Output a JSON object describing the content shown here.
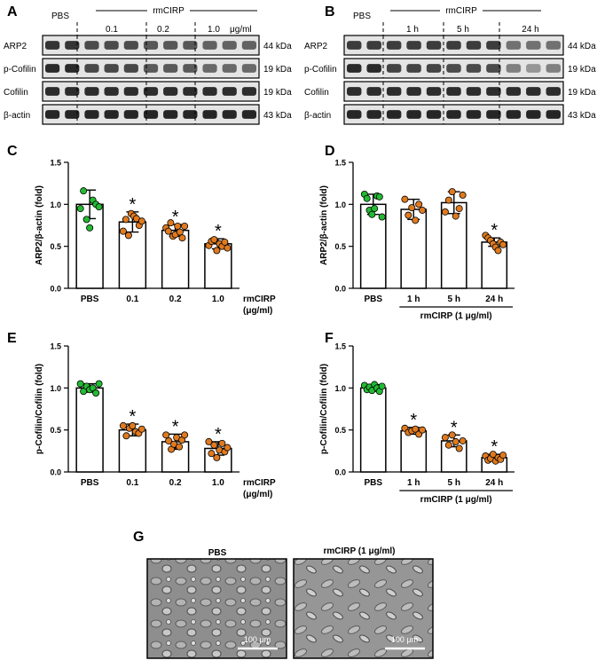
{
  "panels": {
    "A": {
      "letter": "A",
      "treatment": "rmCIRP",
      "unit": "μg/ml",
      "groups": [
        "PBS",
        "0.1",
        "0.2",
        "1.0"
      ],
      "proteins": [
        {
          "name": "ARP2",
          "kda": "44 kDa"
        },
        {
          "name": "p-Cofilin",
          "kda": "19 kDa"
        },
        {
          "name": "Cofilin",
          "kda": "19 kDa"
        },
        {
          "name": "β-actin",
          "kda": "43 kDa"
        }
      ]
    },
    "B": {
      "letter": "B",
      "treatment": "rmCIRP",
      "groups": [
        "PBS",
        "1 h",
        "5 h",
        "24 h"
      ],
      "proteins": [
        {
          "name": "ARP2",
          "kda": "44 kDa"
        },
        {
          "name": "p-Cofilin",
          "kda": "19 kDa"
        },
        {
          "name": "Cofilin",
          "kda": "19 kDa"
        },
        {
          "name": "β-actin",
          "kda": "43 kDa"
        }
      ]
    },
    "G": {
      "letter": "G",
      "left_title": "PBS",
      "right_title": "rmCIRP (1 μg/ml)",
      "scale_bar": "100 μm"
    }
  },
  "chart_data": [
    {
      "panel": "C",
      "type": "bar",
      "ylabel": "ARP2/β-actin (fold)",
      "ylim": [
        0,
        1.5
      ],
      "yticks": [
        "0.0",
        "0.5",
        "1.0",
        "1.5"
      ],
      "categories": [
        "PBS",
        "0.1",
        "0.2",
        "1.0"
      ],
      "values": [
        1.0,
        0.79,
        0.69,
        0.53
      ],
      "errors": [
        0.17,
        0.12,
        0.07,
        0.06
      ],
      "significant": [
        false,
        true,
        true,
        true
      ],
      "marker": "*",
      "xlabel": "rmCIRP",
      "xlabel_unit": "(μg/ml)",
      "points": [
        [
          0.95,
          1.16,
          0.82,
          0.72,
          1.05,
          1.0,
          0.97
        ],
        [
          0.68,
          0.82,
          0.63,
          0.89,
          0.86,
          0.83,
          0.75,
          0.8
        ],
        [
          0.72,
          0.68,
          0.78,
          0.62,
          0.64,
          0.74,
          0.67,
          0.6,
          0.74
        ],
        [
          0.51,
          0.56,
          0.58,
          0.45,
          0.53,
          0.5,
          0.55,
          0.48
        ]
      ],
      "point_colors": [
        "#22bb33",
        "#e07a1f",
        "#e07a1f",
        "#e07a1f"
      ]
    },
    {
      "panel": "D",
      "type": "bar",
      "ylabel": "ARP2/β-actin (fold)",
      "ylim": [
        0,
        1.5
      ],
      "yticks": [
        "0.0",
        "0.5",
        "1.0",
        "1.5"
      ],
      "categories": [
        "PBS",
        "1 h",
        "5 h",
        "24 h"
      ],
      "values": [
        1.0,
        0.94,
        1.02,
        0.55
      ],
      "errors": [
        0.12,
        0.12,
        0.13,
        0.05
      ],
      "significant": [
        false,
        false,
        false,
        true
      ],
      "marker": "*",
      "bracket_label": "rmCIRP (1 μg/ml)",
      "points": [
        [
          1.12,
          1.07,
          0.93,
          0.88,
          0.95,
          1.1,
          1.09,
          0.85
        ],
        [
          1.06,
          0.87,
          0.96,
          0.81,
          1.0,
          0.93
        ],
        [
          0.91,
          1.05,
          1.15,
          0.86,
          0.95,
          1.11
        ],
        [
          0.63,
          0.6,
          0.57,
          0.53,
          0.49,
          0.45,
          0.55,
          0.52
        ]
      ],
      "point_colors": [
        "#22bb33",
        "#e07a1f",
        "#e07a1f",
        "#e07a1f"
      ]
    },
    {
      "panel": "E",
      "type": "bar",
      "ylabel": "p-Cofilin/Cofilin (fold)",
      "ylim": [
        0,
        1.5
      ],
      "yticks": [
        "0.0",
        "0.5",
        "1.0",
        "1.5"
      ],
      "categories": [
        "PBS",
        "0.1",
        "0.2",
        "1.0"
      ],
      "values": [
        1.0,
        0.5,
        0.36,
        0.28
      ],
      "errors": [
        0.05,
        0.07,
        0.09,
        0.08
      ],
      "significant": [
        false,
        true,
        true,
        true
      ],
      "marker": "*",
      "xlabel": "rmCIRP",
      "xlabel_unit": "(μg/ml)",
      "points": [
        [
          1.05,
          0.96,
          1.02,
          0.98,
          1.0,
          0.94,
          1.05
        ],
        [
          0.55,
          0.43,
          0.52,
          0.55,
          0.48,
          0.46,
          0.51
        ],
        [
          0.44,
          0.37,
          0.27,
          0.33,
          0.41,
          0.3,
          0.38,
          0.44
        ],
        [
          0.36,
          0.22,
          0.32,
          0.17,
          0.26,
          0.34,
          0.24,
          0.29
        ]
      ],
      "point_colors": [
        "#22bb33",
        "#e07a1f",
        "#e07a1f",
        "#e07a1f"
      ]
    },
    {
      "panel": "F",
      "type": "bar",
      "ylabel": "p-Cofilin/Cofilin (fold)",
      "ylim": [
        0,
        1.5
      ],
      "yticks": [
        "0.0",
        "0.5",
        "1.0",
        "1.5"
      ],
      "categories": [
        "PBS",
        "1 h",
        "5 h",
        "24 h"
      ],
      "values": [
        1.0,
        0.49,
        0.37,
        0.17
      ],
      "errors": [
        0.04,
        0.04,
        0.07,
        0.04
      ],
      "significant": [
        false,
        true,
        true,
        true
      ],
      "marker": "*",
      "bracket_label": "rmCIRP (1 μg/ml)",
      "points": [
        [
          1.03,
          0.98,
          1.01,
          0.97,
          1.04,
          1.0,
          0.96,
          1.02
        ],
        [
          0.52,
          0.47,
          0.49,
          0.51,
          0.45,
          0.5
        ],
        [
          0.41,
          0.32,
          0.44,
          0.36,
          0.28,
          0.37
        ],
        [
          0.19,
          0.14,
          0.16,
          0.21,
          0.13,
          0.17,
          0.15,
          0.2
        ]
      ],
      "point_colors": [
        "#22bb33",
        "#e07a1f",
        "#e07a1f",
        "#e07a1f"
      ]
    }
  ]
}
